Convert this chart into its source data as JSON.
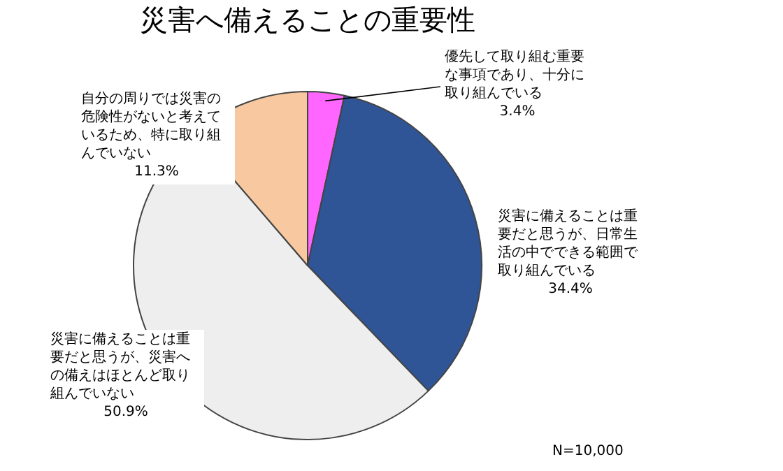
{
  "chart_data": {
    "type": "pie",
    "title": "災害へ備えることの重要性",
    "categories": [
      "優先して取り組む重要な事項であり、十分に取り組んでいる",
      "災害に備えることは重要だと思うが、日常生活の中でできる範囲で取り組んでいる",
      "災害に備えることは重要だと思うが、災害への備えはほとんど取り組んでいない",
      "自分の周りでは災害の危険性がないと考えているため、特に取り組んでいない"
    ],
    "values": [
      3.4,
      34.4,
      50.9,
      11.3
    ],
    "colors": [
      "#ff66ff",
      "#2f5597",
      "#eeeeee",
      "#f8c9a0"
    ],
    "value_labels": [
      "3.4%",
      "34.4%",
      "50.9%",
      "11.3%"
    ],
    "annotations": [
      "N=10,000"
    ]
  }
}
